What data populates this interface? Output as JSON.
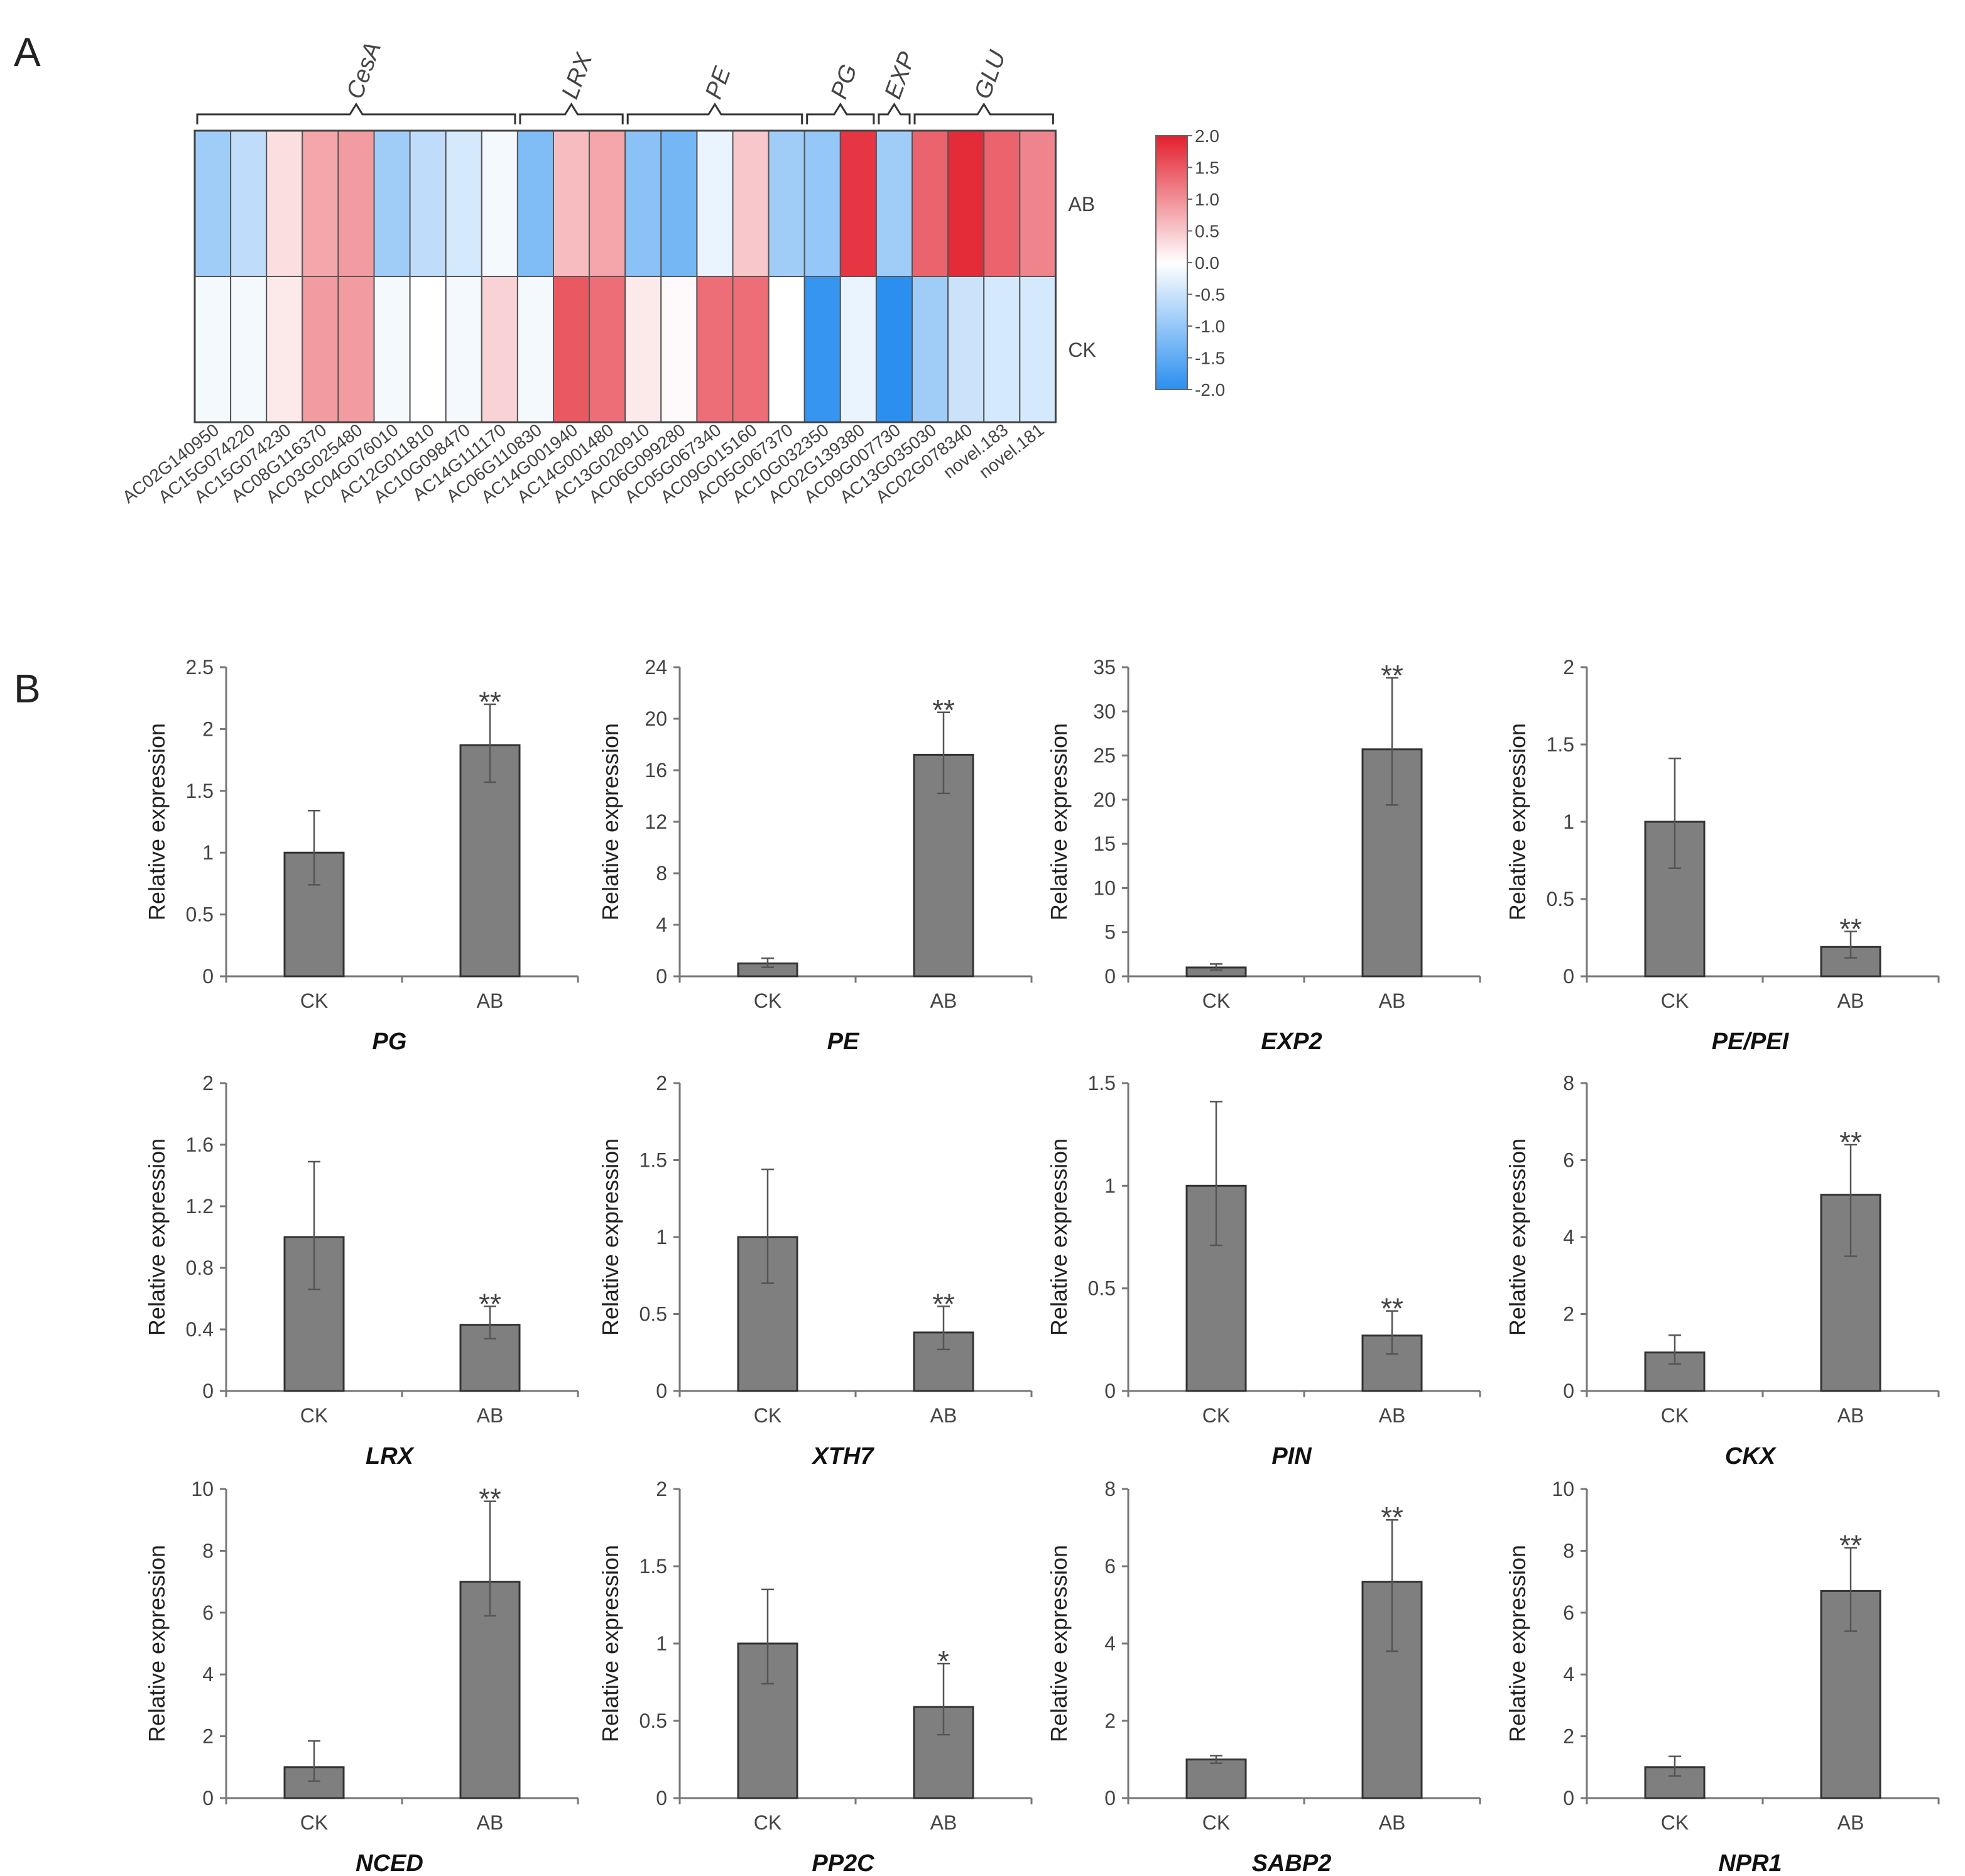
{
  "panel_labels": {
    "a": "A",
    "b": "B"
  },
  "chart_data": [
    {
      "type": "heatmap",
      "panel": "A",
      "rows": [
        "AB",
        "CK"
      ],
      "columns": [
        "AC02G140950",
        "AC15G074220",
        "AC15G074230",
        "AC08G116370",
        "AC03G025480",
        "AC04G076010",
        "AC12G011810",
        "AC10G098470",
        "AC14G111170",
        "AC06G110830",
        "AC14G001940",
        "AC14G001480",
        "AC13G020910",
        "AC06G099280",
        "AC05G067340",
        "AC09G015160",
        "AC05G067370",
        "AC10G032350",
        "AC02G139380",
        "AC09G007730",
        "AC13G035030",
        "AC02G078340",
        "novel.183",
        "novel.181"
      ],
      "values": [
        [
          -0.9,
          -0.6,
          0.3,
          0.8,
          0.9,
          -0.9,
          -0.6,
          -0.4,
          -0.1,
          -1.2,
          0.6,
          0.8,
          -1.1,
          -1.3,
          -0.2,
          0.5,
          -0.9,
          -1.0,
          1.8,
          -0.9,
          1.4,
          1.9,
          1.4,
          1.1
        ],
        [
          -0.1,
          -0.1,
          0.2,
          0.9,
          0.9,
          -0.1,
          0.0,
          -0.1,
          0.4,
          -0.1,
          1.5,
          1.3,
          0.2,
          0.05,
          1.3,
          1.3,
          0.0,
          -1.9,
          -0.2,
          -2.0,
          -0.9,
          -0.5,
          -0.4,
          -0.4
        ]
      ],
      "groups": [
        {
          "name": "CesA",
          "start": 0,
          "end": 8
        },
        {
          "name": "LRX",
          "start": 9,
          "end": 11
        },
        {
          "name": "PE",
          "start": 12,
          "end": 16
        },
        {
          "name": "PG",
          "start": 17,
          "end": 18
        },
        {
          "name": "EXP",
          "start": 19,
          "end": 19
        },
        {
          "name": "GLU",
          "start": 20,
          "end": 23
        }
      ],
      "colorbar": {
        "min": -2.0,
        "max": 2.0,
        "ticks": [
          "2.0",
          "1.5",
          "1.0",
          "0.5",
          "0.0",
          "-0.5",
          "-1.0",
          "-1.5",
          "-2.0"
        ],
        "colors": [
          "#2b8ff0",
          "#ffffff",
          "#e3202e"
        ]
      }
    },
    {
      "type": "bar",
      "panel": "B",
      "gene": "PG",
      "ylabel": "Relative expression",
      "categories": [
        "CK",
        "AB"
      ],
      "values": [
        1.0,
        1.87
      ],
      "err_high": [
        1.34,
        2.2
      ],
      "err_low": [
        0.74,
        1.57
      ],
      "ylim": [
        0,
        2.5
      ],
      "yticks": [
        "0",
        "0.5",
        "1",
        "1.5",
        "2",
        "2.5"
      ],
      "sig": [
        "",
        "**"
      ]
    },
    {
      "type": "bar",
      "panel": "B",
      "gene": "PE",
      "ylabel": "Relative expression",
      "categories": [
        "CK",
        "AB"
      ],
      "values": [
        1.0,
        17.2
      ],
      "err_high": [
        1.4,
        20.5
      ],
      "err_low": [
        0.7,
        14.2
      ],
      "ylim": [
        0,
        24
      ],
      "yticks": [
        "0",
        "4",
        "8",
        "12",
        "16",
        "20",
        "24"
      ],
      "sig": [
        "",
        "**"
      ]
    },
    {
      "type": "bar",
      "panel": "B",
      "gene": "EXP2",
      "ylabel": "Relative expression",
      "categories": [
        "CK",
        "AB"
      ],
      "values": [
        1.0,
        25.7
      ],
      "err_high": [
        1.4,
        33.8
      ],
      "err_low": [
        0.7,
        19.4
      ],
      "ylim": [
        0,
        35
      ],
      "yticks": [
        "0",
        "5",
        "10",
        "15",
        "20",
        "25",
        "30",
        "35"
      ],
      "sig": [
        "",
        "**"
      ]
    },
    {
      "type": "bar",
      "panel": "B",
      "gene": "PE/PEI",
      "ylabel": "Relative expression",
      "categories": [
        "CK",
        "AB"
      ],
      "values": [
        1.0,
        0.19
      ],
      "err_high": [
        1.41,
        0.29
      ],
      "err_low": [
        0.7,
        0.12
      ],
      "ylim": [
        0,
        2
      ],
      "yticks": [
        "0",
        "0.5",
        "1",
        "1.5",
        "2"
      ],
      "sig": [
        "",
        "**"
      ]
    },
    {
      "type": "bar",
      "panel": "B",
      "gene": "LRX",
      "ylabel": "Relative expression",
      "categories": [
        "CK",
        "AB"
      ],
      "values": [
        1.0,
        0.43
      ],
      "err_high": [
        1.49,
        0.55
      ],
      "err_low": [
        0.66,
        0.34
      ],
      "ylim": [
        0,
        2
      ],
      "yticks": [
        "0",
        "0.4",
        "0.8",
        "1.2",
        "1.6",
        "2"
      ],
      "sig": [
        "",
        "**"
      ]
    },
    {
      "type": "bar",
      "panel": "B",
      "gene": "XTH7",
      "ylabel": "Relative expression",
      "categories": [
        "CK",
        "AB"
      ],
      "values": [
        1.0,
        0.38
      ],
      "err_high": [
        1.44,
        0.55
      ],
      "err_low": [
        0.7,
        0.27
      ],
      "ylim": [
        0,
        2
      ],
      "yticks": [
        "0",
        "0.5",
        "1",
        "1.5",
        "2"
      ],
      "sig": [
        "",
        "**"
      ]
    },
    {
      "type": "bar",
      "panel": "B",
      "gene": "PIN",
      "ylabel": "Relative expression",
      "categories": [
        "CK",
        "AB"
      ],
      "values": [
        1.0,
        0.27
      ],
      "err_high": [
        1.41,
        0.39
      ],
      "err_low": [
        0.71,
        0.18
      ],
      "ylim": [
        0,
        1.5
      ],
      "yticks": [
        "0",
        "0.5",
        "1",
        "1.5"
      ],
      "sig": [
        "",
        "**"
      ]
    },
    {
      "type": "bar",
      "panel": "B",
      "gene": "CKX",
      "ylabel": "Relative expression",
      "categories": [
        "CK",
        "AB"
      ],
      "values": [
        1.0,
        5.1
      ],
      "err_high": [
        1.45,
        6.4
      ],
      "err_low": [
        0.7,
        3.5
      ],
      "ylim": [
        0,
        8
      ],
      "yticks": [
        "0",
        "2",
        "4",
        "6",
        "8"
      ],
      "sig": [
        "",
        "**"
      ]
    },
    {
      "type": "bar",
      "panel": "B",
      "gene": "NCED",
      "ylabel": "Relative expression",
      "categories": [
        "CK",
        "AB"
      ],
      "values": [
        1.0,
        7.0
      ],
      "err_high": [
        1.85,
        9.6
      ],
      "err_low": [
        0.55,
        5.9
      ],
      "ylim": [
        0,
        10
      ],
      "yticks": [
        "0",
        "2",
        "4",
        "6",
        "8",
        "10"
      ],
      "sig": [
        "",
        "**"
      ]
    },
    {
      "type": "bar",
      "panel": "B",
      "gene": "PP2C",
      "ylabel": "Relative expression",
      "categories": [
        "CK",
        "AB"
      ],
      "values": [
        1.0,
        0.59
      ],
      "err_high": [
        1.35,
        0.87
      ],
      "err_low": [
        0.74,
        0.41
      ],
      "ylim": [
        0,
        2
      ],
      "yticks": [
        "0",
        "0.5",
        "1",
        "1.5",
        "2"
      ],
      "sig": [
        "",
        "*"
      ]
    },
    {
      "type": "bar",
      "panel": "B",
      "gene": "SABP2",
      "ylabel": "Relative expression",
      "categories": [
        "CK",
        "AB"
      ],
      "values": [
        1.0,
        5.6
      ],
      "err_high": [
        1.1,
        7.2
      ],
      "err_low": [
        0.9,
        3.8
      ],
      "ylim": [
        0,
        8
      ],
      "yticks": [
        "0",
        "2",
        "4",
        "6",
        "8"
      ],
      "sig": [
        "",
        "**"
      ]
    },
    {
      "type": "bar",
      "panel": "B",
      "gene": "NPR1",
      "ylabel": "Relative expression",
      "categories": [
        "CK",
        "AB"
      ],
      "values": [
        1.0,
        6.7
      ],
      "err_high": [
        1.35,
        8.1
      ],
      "err_low": [
        0.72,
        5.4
      ],
      "ylim": [
        0,
        10
      ],
      "yticks": [
        "0",
        "2",
        "4",
        "6",
        "8",
        "10"
      ],
      "sig": [
        "",
        "**"
      ]
    }
  ]
}
